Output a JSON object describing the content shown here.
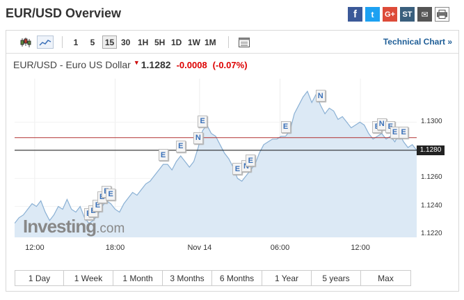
{
  "page": {
    "title": "EUR/USD Overview"
  },
  "share": [
    {
      "name": "facebook",
      "glyph": "f"
    },
    {
      "name": "twitter",
      "glyph": "t"
    },
    {
      "name": "google-plus",
      "glyph": "G+"
    },
    {
      "name": "stocktwits",
      "glyph": "ST"
    },
    {
      "name": "email",
      "glyph": "✉"
    },
    {
      "name": "print",
      "glyph": "⎙"
    }
  ],
  "toolbar": {
    "timeframes": [
      "1",
      "5",
      "15",
      "30",
      "1H",
      "5H",
      "1D",
      "1W",
      "1M"
    ],
    "selected_timeframe": "15",
    "technical_chart": "Technical Chart »"
  },
  "quote": {
    "name": "EUR/USD - Euro US Dollar",
    "price": "1.1282",
    "change": "-0.0008",
    "change_pct": "(-0.07%)"
  },
  "watermark": {
    "brand": "Investing",
    "suffix": ".com"
  },
  "ranges": [
    "1 Day",
    "1 Week",
    "1 Month",
    "3 Months",
    "6 Months",
    "1 Year",
    "5 years",
    "Max"
  ],
  "colors": {
    "line": "#8ab0d4",
    "area": "#dce9f5",
    "prev_close_line": "#b03030",
    "current_line": "#111111",
    "down": "#dd0000"
  },
  "chart_data": {
    "type": "area",
    "x_ticks": [
      "12:00",
      "18:00",
      "Nov 14",
      "06:00",
      "12:00"
    ],
    "y_ticks": [
      1.13,
      1.128,
      1.126,
      1.124,
      1.122
    ],
    "ylim": [
      1.1218,
      1.1331
    ],
    "current_price": 1.128,
    "current_price_label": "1.1280",
    "reference_line": 1.1289,
    "series": [
      {
        "values": [
          1.1228,
          1.1232,
          1.1234,
          1.1238,
          1.1242,
          1.124,
          1.1244,
          1.1236,
          1.123,
          1.1234,
          1.124,
          1.1238,
          1.1245,
          1.1238,
          1.1236,
          1.124,
          1.1232,
          1.1228,
          1.123,
          1.1234,
          1.124,
          1.1244,
          1.1242,
          1.1238,
          1.1236,
          1.1242,
          1.1246,
          1.125,
          1.1248,
          1.1252,
          1.1256,
          1.1258,
          1.1262,
          1.1266,
          1.127,
          1.127,
          1.1266,
          1.1272,
          1.1276,
          1.1272,
          1.1268,
          1.1272,
          1.1282,
          1.1294,
          1.1298,
          1.1292,
          1.129,
          1.1284,
          1.1278,
          1.1274,
          1.1268,
          1.126,
          1.1258,
          1.1262,
          1.1266,
          1.127,
          1.1278,
          1.1284,
          1.1286,
          1.1288,
          1.1288,
          1.129,
          1.129,
          1.1294,
          1.1306,
          1.1312,
          1.1318,
          1.1322,
          1.1314,
          1.132,
          1.1312,
          1.1306,
          1.131,
          1.1308,
          1.1302,
          1.1304,
          1.13,
          1.1296,
          1.1298,
          1.13,
          1.1298,
          1.1292,
          1.1288,
          1.129,
          1.1292,
          1.1288,
          1.129,
          1.1286,
          1.1292,
          1.1286,
          1.1282,
          1.1284,
          1.128
        ]
      }
    ],
    "events": [
      {
        "label": "E",
        "index": 17
      },
      {
        "label": "E",
        "index": 18
      },
      {
        "label": "E",
        "index": 19
      },
      {
        "label": "E",
        "index": 20
      },
      {
        "label": "E",
        "index": 21
      },
      {
        "label": "E",
        "index": 22
      },
      {
        "label": "E",
        "index": 34
      },
      {
        "label": "E",
        "index": 38
      },
      {
        "label": "N",
        "index": 42
      },
      {
        "label": "E",
        "index": 43
      },
      {
        "label": "E",
        "index": 51
      },
      {
        "label": "N",
        "index": 53
      },
      {
        "label": "E",
        "index": 54
      },
      {
        "label": "E",
        "index": 62
      },
      {
        "label": "N",
        "index": 70
      },
      {
        "label": "E",
        "index": 83
      },
      {
        "label": "N",
        "index": 84
      },
      {
        "label": "E",
        "index": 86
      },
      {
        "label": "E",
        "index": 87
      },
      {
        "label": "E",
        "index": 89
      }
    ]
  }
}
